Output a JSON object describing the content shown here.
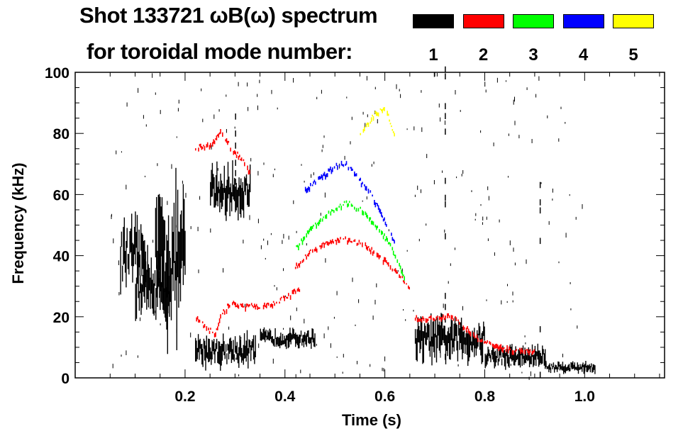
{
  "chart_data": {
    "type": "heatmap",
    "title": "Shot 133721 ωB(ω) spectrum",
    "subtitle": "for toroidal mode number:",
    "xlabel": "Time (s)",
    "ylabel": "Frequency (kHz)",
    "xlim": [
      -0.02,
      1.16
    ],
    "ylim": [
      0,
      100
    ],
    "xticks": [
      0.2,
      0.4,
      0.6,
      0.8,
      1.0
    ],
    "xtick_labels": [
      "0.2",
      "0.4",
      "0.6",
      "0.8",
      "1.0"
    ],
    "yticks": [
      0,
      20,
      40,
      60,
      80,
      100
    ],
    "ytick_labels": [
      "0",
      "20",
      "40",
      "60",
      "80",
      "100"
    ],
    "legend": [
      {
        "label": "1",
        "color": "#000000"
      },
      {
        "label": "2",
        "color": "#ff0000"
      },
      {
        "label": "3",
        "color": "#00ff00"
      },
      {
        "label": "4",
        "color": "#0000ff"
      },
      {
        "label": "5",
        "color": "#ffff00"
      }
    ],
    "legend_placement": "top-right",
    "mode_traces": [
      {
        "n": 2,
        "color": "#ff0000",
        "points": [
          [
            0.22,
            20
          ],
          [
            0.24,
            16
          ],
          [
            0.26,
            14
          ],
          [
            0.27,
            20
          ],
          [
            0.29,
            24
          ],
          [
            0.32,
            23
          ],
          [
            0.35,
            23
          ],
          [
            0.38,
            24
          ],
          [
            0.41,
            27
          ],
          [
            0.43,
            29
          ]
        ]
      },
      {
        "n": 2,
        "color": "#ff0000",
        "points": [
          [
            0.42,
            36
          ],
          [
            0.45,
            41
          ],
          [
            0.49,
            44
          ],
          [
            0.52,
            45
          ],
          [
            0.56,
            43
          ],
          [
            0.6,
            38
          ],
          [
            0.63,
            33
          ],
          [
            0.65,
            28
          ]
        ]
      },
      {
        "n": 2,
        "color": "#ff0000",
        "points": [
          [
            0.66,
            19
          ],
          [
            0.7,
            19
          ],
          [
            0.73,
            20
          ],
          [
            0.76,
            16
          ],
          [
            0.8,
            11
          ],
          [
            0.85,
            9
          ],
          [
            0.9,
            8
          ]
        ]
      },
      {
        "n": 2,
        "color": "#ff0000",
        "points": [
          [
            0.22,
            75
          ],
          [
            0.25,
            76
          ],
          [
            0.27,
            80
          ],
          [
            0.29,
            75
          ],
          [
            0.32,
            70
          ],
          [
            0.33,
            66
          ]
        ]
      },
      {
        "n": 3,
        "color": "#00ff00",
        "points": [
          [
            0.42,
            42
          ],
          [
            0.45,
            48
          ],
          [
            0.48,
            53
          ],
          [
            0.52,
            57
          ],
          [
            0.55,
            55
          ],
          [
            0.58,
            50
          ],
          [
            0.61,
            43
          ],
          [
            0.64,
            32
          ]
        ]
      },
      {
        "n": 4,
        "color": "#0000ff",
        "points": [
          [
            0.44,
            61
          ],
          [
            0.47,
            65
          ],
          [
            0.5,
            69
          ],
          [
            0.52,
            70
          ],
          [
            0.54,
            66
          ],
          [
            0.57,
            60
          ],
          [
            0.59,
            54
          ],
          [
            0.62,
            44
          ]
        ]
      },
      {
        "n": 5,
        "color": "#ffff00",
        "points": [
          [
            0.55,
            79
          ],
          [
            0.58,
            86
          ],
          [
            0.6,
            88
          ],
          [
            0.62,
            78
          ]
        ]
      }
    ],
    "n1_regions": [
      {
        "t": [
          0.07,
          0.12
        ],
        "f": [
          25,
          55
        ]
      },
      {
        "t": [
          0.1,
          0.17
        ],
        "f": [
          15,
          45
        ]
      },
      {
        "t": [
          0.14,
          0.2
        ],
        "f": [
          5,
          70
        ]
      },
      {
        "t": [
          0.22,
          0.34
        ],
        "f": [
          2,
          16
        ]
      },
      {
        "t": [
          0.25,
          0.33
        ],
        "f": [
          50,
          72
        ]
      },
      {
        "t": [
          0.35,
          0.46
        ],
        "f": [
          9,
          17
        ]
      },
      {
        "t": [
          0.66,
          0.8
        ],
        "f": [
          3,
          22
        ]
      },
      {
        "t": [
          0.8,
          0.92
        ],
        "f": [
          2,
          12
        ]
      },
      {
        "t": [
          0.92,
          1.02
        ],
        "f": [
          1,
          6
        ]
      }
    ],
    "n1_lines": [
      {
        "t": 0.72,
        "f": [
          0,
          100
        ]
      },
      {
        "t": 0.91,
        "f": [
          0,
          70
        ]
      },
      {
        "t": 0.3,
        "f": [
          60,
          100
        ]
      }
    ]
  }
}
